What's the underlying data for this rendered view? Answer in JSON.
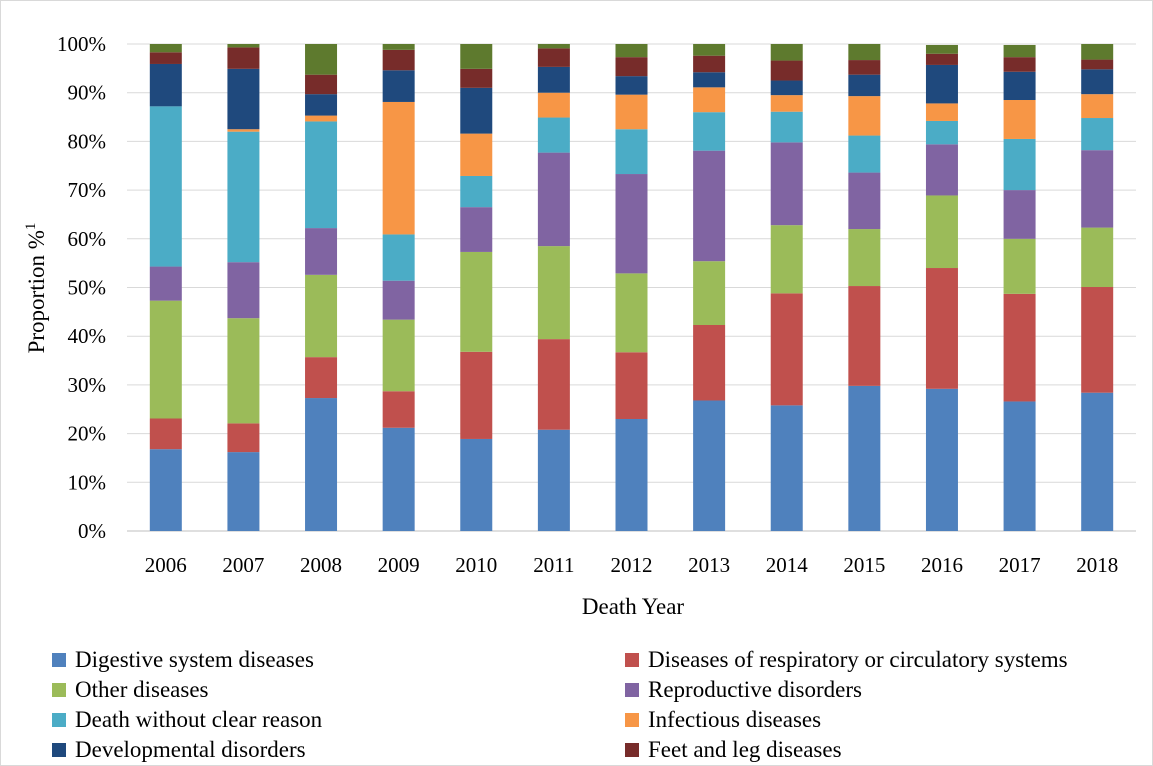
{
  "chart_data": {
    "type": "bar",
    "stacked": true,
    "xlabel": "Death Year",
    "ylabel": "Proportion %",
    "ylabel_superscript": "1",
    "ylim": [
      0,
      100
    ],
    "yticks": [
      "0%",
      "10%",
      "20%",
      "30%",
      "40%",
      "50%",
      "60%",
      "70%",
      "80%",
      "90%",
      "100%"
    ],
    "grid": true,
    "legend_position": "bottom",
    "categories": [
      "2006",
      "2007",
      "2008",
      "2009",
      "2010",
      "2011",
      "2012",
      "2013",
      "2014",
      "2015",
      "2016",
      "2017",
      "2018"
    ],
    "series": [
      {
        "name": "Digestive system diseases",
        "color": "#4f81bd",
        "values": [
          16.8,
          16.2,
          27.3,
          21.2,
          18.9,
          20.8,
          23.0,
          26.8,
          25.8,
          29.8,
          29.2,
          26.6,
          28.4
        ]
      },
      {
        "name": "Diseases of respiratory or circulatory systems",
        "color": "#c0504d",
        "values": [
          6.3,
          5.9,
          8.4,
          7.5,
          17.9,
          18.6,
          13.7,
          15.5,
          23.0,
          20.5,
          24.8,
          22.1,
          21.7
        ]
      },
      {
        "name": "Other diseases",
        "color": "#9bbb59",
        "values": [
          24.2,
          21.6,
          16.9,
          14.7,
          20.5,
          19.1,
          16.2,
          13.1,
          14.0,
          11.7,
          14.9,
          11.3,
          12.2
        ]
      },
      {
        "name": "Reproductive disorders",
        "color": "#8064a2",
        "values": [
          7.0,
          11.5,
          9.6,
          8.0,
          9.2,
          19.2,
          20.4,
          22.7,
          17.0,
          11.6,
          10.5,
          10.0,
          15.9
        ]
      },
      {
        "name": "Death without clear reason",
        "color": "#4bacc6",
        "values": [
          32.9,
          26.8,
          21.9,
          9.5,
          6.4,
          7.2,
          9.2,
          7.9,
          6.3,
          7.6,
          4.8,
          10.5,
          6.6
        ]
      },
      {
        "name": "Infectious diseases",
        "color": "#f79646",
        "values": [
          0,
          0.5,
          1.2,
          27.2,
          8.7,
          5.1,
          7.1,
          5.1,
          3.4,
          8.1,
          3.6,
          8.0,
          4.9
        ]
      },
      {
        "name": "Developmental disorders",
        "color": "#1f497d",
        "values": [
          8.7,
          12.4,
          4.4,
          6.5,
          9.4,
          5.3,
          3.8,
          3.1,
          3.0,
          4.4,
          7.9,
          5.8,
          5.1
        ]
      },
      {
        "name": "Feet and leg diseases",
        "color": "#772c2a",
        "values": [
          2.4,
          4.4,
          4.0,
          4.2,
          3.9,
          3.8,
          3.9,
          3.4,
          4.1,
          3.0,
          2.3,
          3.0,
          2.0
        ]
      },
      {
        "name": "",
        "color": "#5e7a2e",
        "values": [
          1.7,
          0.7,
          6.3,
          1.2,
          5.1,
          0.9,
          2.7,
          2.4,
          3.4,
          3.3,
          1.8,
          2.5,
          3.2
        ]
      }
    ]
  }
}
